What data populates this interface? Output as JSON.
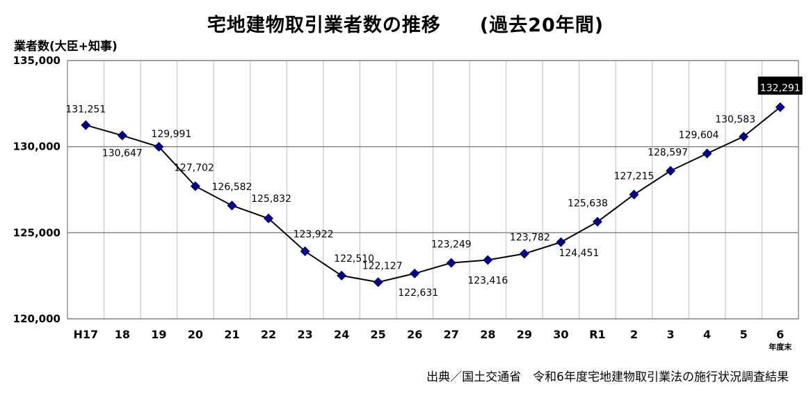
{
  "chart_data": {
    "type": "line",
    "title": "宅地建物取引業者数の推移　　(過去20年間)",
    "ylabel": "業者数(大臣+知事)",
    "x_unit": "年度末",
    "categories": [
      "H17",
      "18",
      "19",
      "20",
      "21",
      "22",
      "23",
      "24",
      "25",
      "26",
      "27",
      "28",
      "29",
      "30",
      "R1",
      "2",
      "3",
      "4",
      "5",
      "6"
    ],
    "values": [
      131251,
      130647,
      129991,
      127702,
      126582,
      125832,
      123922,
      122510,
      122127,
      122631,
      123249,
      123416,
      123782,
      124451,
      125638,
      127215,
      128597,
      129604,
      130583,
      132291
    ],
    "value_labels": [
      "131,251",
      "130,647",
      "129,991",
      "127,702",
      "126,582",
      "125,832",
      "123,922",
      "122,510",
      "122,127",
      "122,631",
      "123,249",
      "123,416",
      "123,782",
      "124,451",
      "125,638",
      "127,215",
      "128,597",
      "129,604",
      "130,583",
      "132,291"
    ],
    "ylim": [
      120000,
      135000
    ],
    "yticks": [
      120000,
      125000,
      130000,
      135000
    ],
    "ytick_labels": [
      "120,000",
      "125,000",
      "130,000",
      "135,000"
    ],
    "grid": true,
    "line_color": "#000000",
    "marker_color": "#000080",
    "highlight_index": 19,
    "highlight_bg": "#000000",
    "highlight_fg": "#ffffff"
  },
  "source": "出典／国土交通省　令和6年度宅地建物取引業法の施行状況調査結果"
}
